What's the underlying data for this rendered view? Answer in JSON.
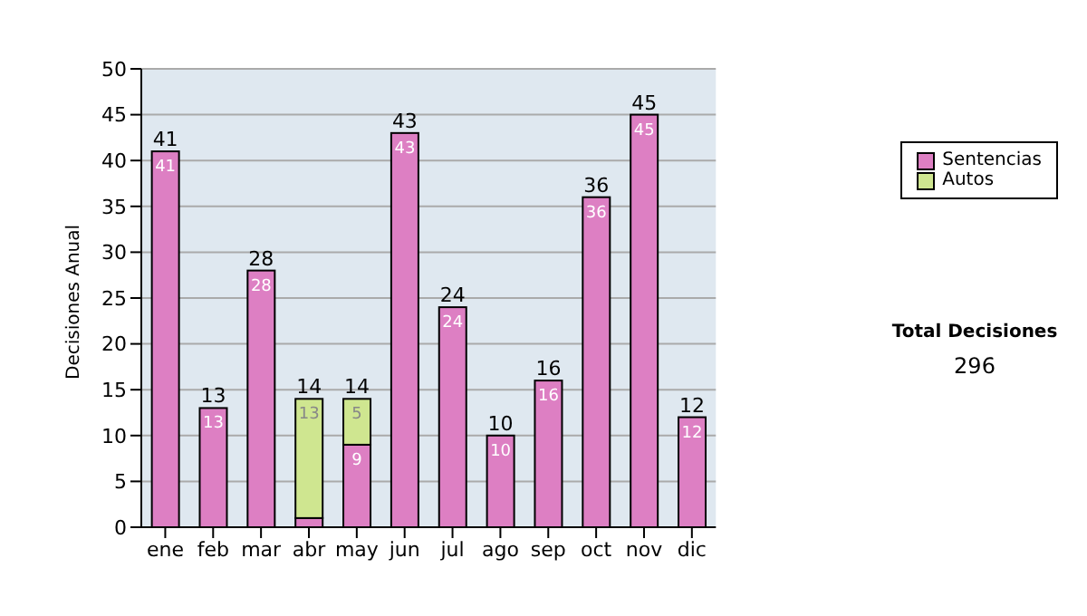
{
  "chart_data": {
    "type": "bar",
    "stacked": true,
    "ylabel": "Decisiones Anual",
    "categories": [
      "ene",
      "feb",
      "mar",
      "abr",
      "may",
      "jun",
      "jul",
      "ago",
      "sep",
      "oct",
      "nov",
      "dic"
    ],
    "series": [
      {
        "name": "Sentencias",
        "color": "#dd7fc3",
        "values": [
          41,
          13,
          28,
          1,
          9,
          43,
          24,
          10,
          16,
          36,
          45,
          12
        ],
        "value_labels": [
          "41",
          "13",
          "28",
          null,
          "9",
          "43",
          "24",
          "10",
          "16",
          "36",
          "45",
          "12"
        ]
      },
      {
        "name": "Autos",
        "color": "#cfe690",
        "values": [
          null,
          null,
          null,
          13,
          5,
          null,
          null,
          null,
          null,
          null,
          null,
          null
        ],
        "value_labels": [
          null,
          null,
          null,
          "13",
          "5",
          null,
          null,
          null,
          null,
          null,
          null,
          null
        ]
      }
    ],
    "totals": [
      "41",
      "13",
      "28",
      "14",
      "14",
      "43",
      "24",
      "10",
      "16",
      "36",
      "45",
      "12"
    ],
    "ylim": [
      0,
      50
    ],
    "yticks": [
      0,
      5,
      10,
      15,
      20,
      25,
      30,
      35,
      40,
      45,
      50
    ],
    "grid": "y",
    "legend": "right",
    "annotations": [
      "Total Decisiones",
      "296"
    ]
  }
}
